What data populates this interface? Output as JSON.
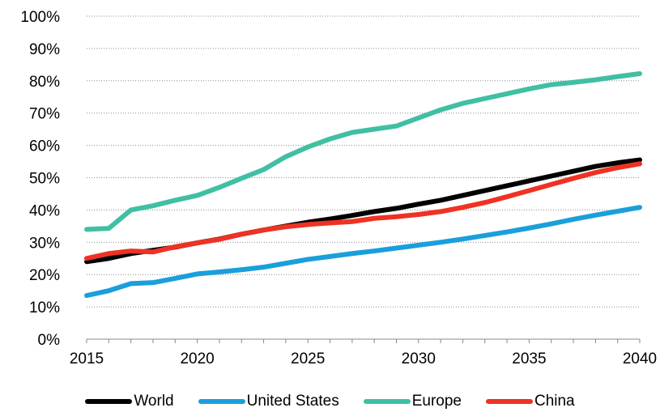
{
  "chart_data": {
    "type": "line",
    "title": "",
    "xlabel": "",
    "ylabel": "",
    "x": [
      2015,
      2016,
      2017,
      2018,
      2019,
      2020,
      2021,
      2022,
      2023,
      2024,
      2025,
      2026,
      2027,
      2028,
      2029,
      2030,
      2031,
      2032,
      2033,
      2034,
      2035,
      2036,
      2037,
      2038,
      2039,
      2040
    ],
    "xlim": [
      2015,
      2040
    ],
    "ylim": [
      0,
      100
    ],
    "x_ticks": [
      "2015",
      "2020",
      "2025",
      "2030",
      "2035",
      "2040"
    ],
    "y_ticks": [
      "0%",
      "10%",
      "20%",
      "30%",
      "40%",
      "50%",
      "60%",
      "70%",
      "80%",
      "90%",
      "100%"
    ],
    "grid": "horizontal dotted",
    "legend_position": "bottom",
    "series": [
      {
        "name": "World",
        "color": "#000000",
        "values": [
          24,
          25,
          26.5,
          27.5,
          28.5,
          29.8,
          31,
          32.5,
          33.8,
          35,
          36.2,
          37.2,
          38.3,
          39.5,
          40.5,
          41.8,
          43,
          44.5,
          46,
          47.5,
          49,
          50.5,
          52,
          53.5,
          54.6,
          55.5
        ]
      },
      {
        "name": "United States",
        "color": "#1a9fdb",
        "values": [
          13.5,
          15,
          17.2,
          17.5,
          18.8,
          20.2,
          20.8,
          21.5,
          22.3,
          23.5,
          24.7,
          25.6,
          26.5,
          27.3,
          28.2,
          29.1,
          30,
          31,
          32.1,
          33.2,
          34.4,
          35.7,
          37.1,
          38.4,
          39.6,
          40.8
        ]
      },
      {
        "name": "Europe",
        "color": "#40bfa3",
        "values": [
          34,
          34.3,
          40,
          41.3,
          43,
          44.5,
          47,
          49.8,
          52.5,
          56.5,
          59.5,
          62,
          64,
          65,
          66,
          68.5,
          71,
          73,
          74.5,
          76,
          77.5,
          78.8,
          79.5,
          80.3,
          81.3,
          82.2
        ]
      },
      {
        "name": "China",
        "color": "#ee3224",
        "values": [
          25,
          26.5,
          27.3,
          27,
          28.6,
          29.8,
          30.9,
          32.5,
          33.8,
          34.8,
          35.5,
          36,
          36.4,
          37.4,
          37.9,
          38.6,
          39.5,
          40.8,
          42.3,
          44.1,
          46,
          47.9,
          49.8,
          51.6,
          53.1,
          54.3
        ]
      }
    ]
  }
}
